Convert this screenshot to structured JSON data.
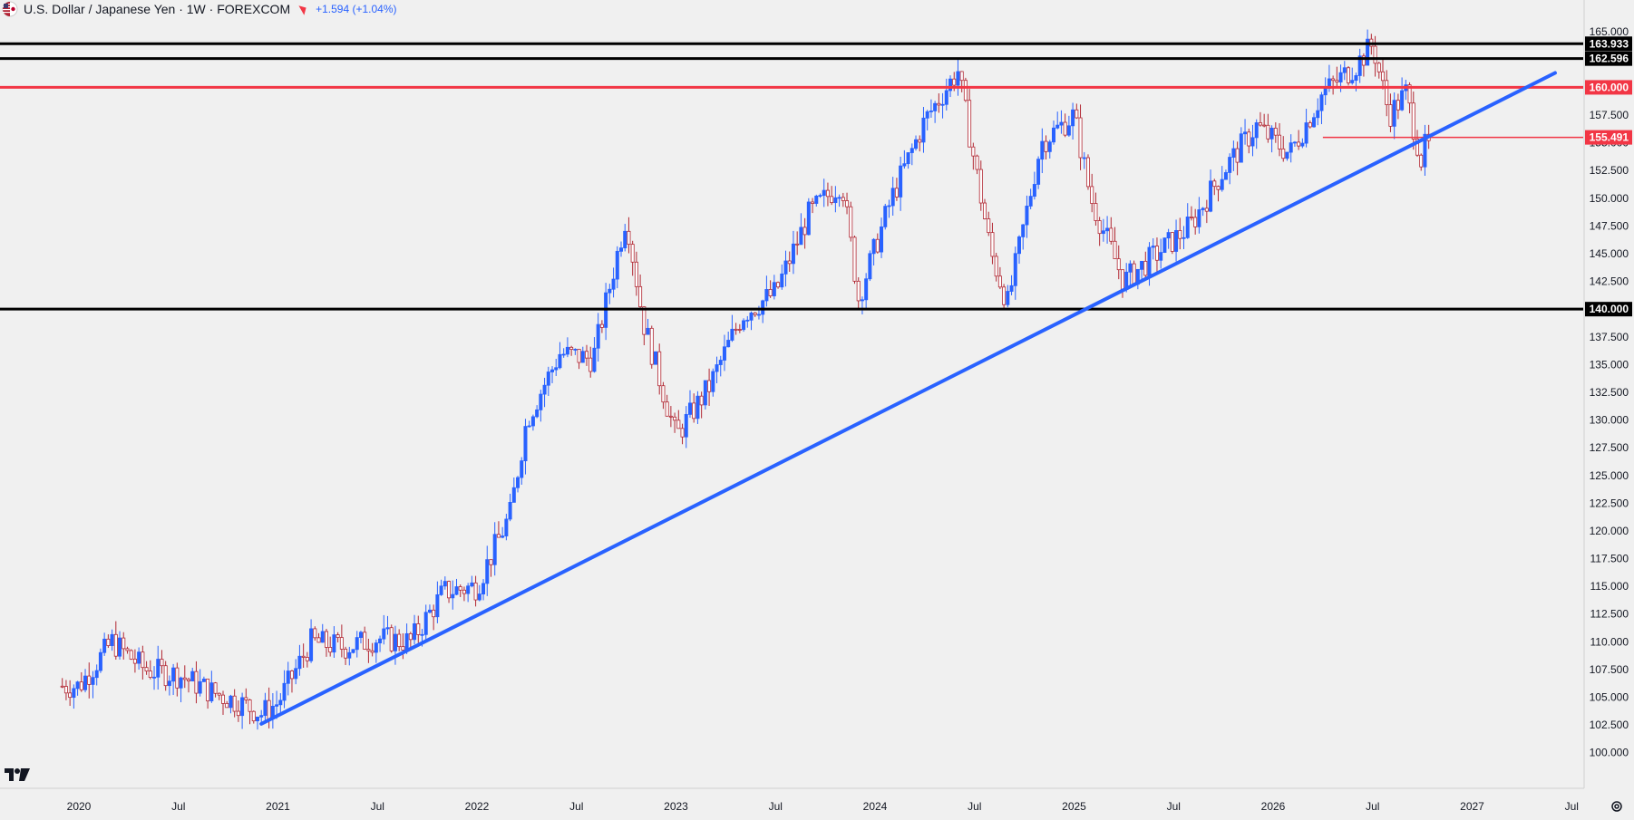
{
  "header": {
    "title": "U.S. Dollar / Japanese Yen · 1W · FOREXCOM",
    "change": "+1.594 (+1.04%)",
    "flag_icon": "us-jp-flag-icon"
  },
  "colors": {
    "background": "#f0f0f0",
    "up": "#2962ff",
    "down": "#b22833",
    "trendline": "#2962ff",
    "resistance": "#f23645",
    "level": "#000000"
  },
  "chart_data": {
    "type": "candlestick",
    "title": "",
    "xlabel": "",
    "ylabel": "",
    "ylim": [
      98.75,
      166.0
    ],
    "x_ticks": [
      "2020",
      "Jul",
      "2021",
      "Jul",
      "2022",
      "Jul",
      "2023",
      "Jul",
      "2024",
      "Jul",
      "2025",
      "Jul",
      "2026",
      "Jul",
      "2027",
      "Jul"
    ],
    "y_ticks": [
      "165.000",
      "162.500",
      "160.000",
      "157.500",
      "155.000",
      "152.500",
      "150.000",
      "147.500",
      "145.000",
      "142.500",
      "140.000",
      "137.500",
      "135.000",
      "132.500",
      "130.000",
      "127.500",
      "125.000",
      "122.500",
      "120.000",
      "117.500",
      "115.000",
      "112.500",
      "110.000",
      "107.500",
      "105.000",
      "102.500",
      "100.000"
    ],
    "horizontal_levels": [
      {
        "value": 163.933,
        "label": "163.933",
        "color": "#000000"
      },
      {
        "value": 162.596,
        "label": "162.596",
        "color": "#000000"
      },
      {
        "value": 160.0,
        "label": "160.000",
        "color": "#f23645"
      },
      {
        "value": 155.491,
        "label": "155.491",
        "color": "#f23645",
        "from": "2026-04"
      },
      {
        "value": 140.0,
        "label": "140.000",
        "color": "#000000"
      }
    ],
    "trendline": {
      "start": [
        "2020-12",
        102.6
      ],
      "end": [
        "2027-06",
        161.3
      ],
      "color": "#2962ff"
    },
    "price_path": [
      [
        "2020-01",
        106.0
      ],
      [
        "2020-03",
        110.0
      ],
      [
        "2020-05",
        107.5
      ],
      [
        "2020-07",
        107.0
      ],
      [
        "2020-09",
        105.5
      ],
      [
        "2020-11",
        104.3
      ],
      [
        "2020-12",
        103.5
      ],
      [
        "2021-01",
        104.5
      ],
      [
        "2021-03",
        110.0
      ],
      [
        "2021-05",
        109.5
      ],
      [
        "2021-07",
        110.3
      ],
      [
        "2021-09",
        110.0
      ],
      [
        "2021-11",
        114.5
      ],
      [
        "2022-01",
        115.0
      ],
      [
        "2022-03",
        121.5
      ],
      [
        "2022-04",
        130.0
      ],
      [
        "2022-06",
        136.0
      ],
      [
        "2022-08",
        135.5
      ],
      [
        "2022-10",
        148.5
      ],
      [
        "2022-11",
        139.0
      ],
      [
        "2023-01",
        128.5
      ],
      [
        "2023-03",
        133.0
      ],
      [
        "2023-05",
        139.5
      ],
      [
        "2023-07",
        141.5
      ],
      [
        "2023-09",
        148.5
      ],
      [
        "2023-11",
        151.5
      ],
      [
        "2023-12",
        141.0
      ],
      [
        "2024-02",
        150.0
      ],
      [
        "2024-04",
        157.0
      ],
      [
        "2024-06",
        161.5
      ],
      [
        "2024-08",
        145.0
      ],
      [
        "2024-09",
        140.5
      ],
      [
        "2024-11",
        155.0
      ],
      [
        "2025-01",
        157.5
      ],
      [
        "2025-02",
        150.0
      ],
      [
        "2025-04",
        142.5
      ],
      [
        "2025-06",
        145.0
      ],
      [
        "2025-08",
        147.5
      ],
      [
        "2025-10",
        152.5
      ],
      [
        "2025-12",
        156.5
      ],
      [
        "2026-02",
        154.0
      ],
      [
        "2026-04",
        159.5
      ],
      [
        "2026-06",
        162.0
      ],
      [
        "2026-07",
        163.9
      ],
      [
        "2026-08",
        157.5
      ],
      [
        "2026-09",
        159.5
      ],
      [
        "2026-10",
        153.0
      ],
      [
        "2026-10",
        154.6
      ]
    ]
  }
}
